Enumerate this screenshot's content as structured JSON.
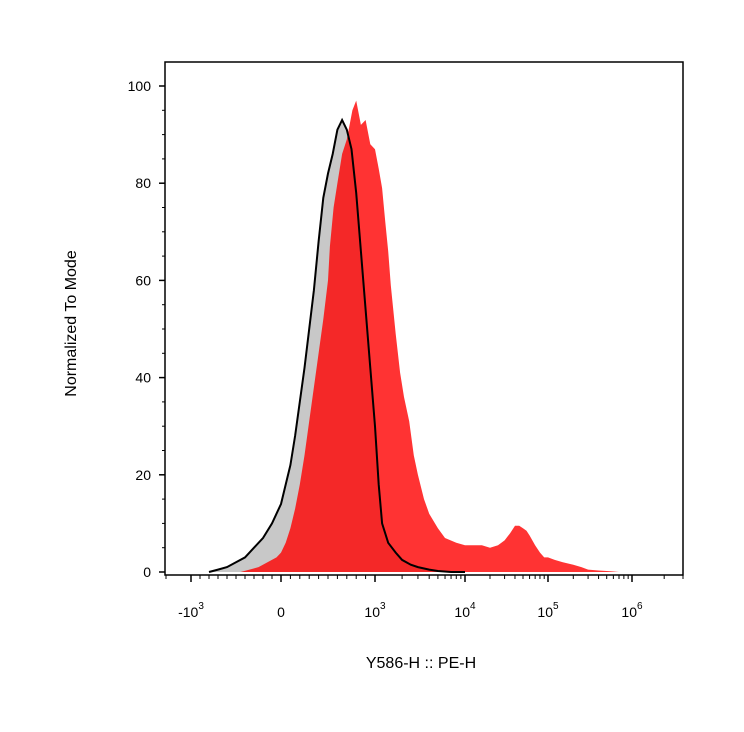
{
  "chart_data": {
    "type": "area",
    "xlabel": "Y586-H :: PE-H",
    "ylabel": "Normalized To Mode",
    "x_scale": "biexponential",
    "ylim": [
      0,
      105
    ],
    "x_tick_labels": [
      {
        "value": -1000,
        "base": "-10",
        "exp": "3"
      },
      {
        "value": 0,
        "base": "0",
        "exp": ""
      },
      {
        "value": 1000,
        "base": "10",
        "exp": "3"
      },
      {
        "value": 10000,
        "base": "10",
        "exp": "4"
      },
      {
        "value": 100000,
        "base": "10",
        "exp": "5"
      },
      {
        "value": 1000000,
        "base": "10",
        "exp": "6"
      }
    ],
    "y_ticks": [
      0,
      20,
      40,
      60,
      80,
      100
    ],
    "grid": false,
    "series": [
      {
        "color": "#ff0000",
        "fill_opacity": 0.8,
        "stroke": "#ff0000",
        "x": [
          -450,
          -350,
          -250,
          -150,
          -50,
          0,
          50,
          100,
          150,
          200,
          250,
          300,
          350,
          400,
          450,
          500,
          520,
          560,
          600,
          650,
          700,
          760,
          800,
          850,
          900,
          950,
          1000,
          1100,
          1200,
          1300,
          1400,
          1500,
          1700,
          1900,
          2100,
          2400,
          2700,
          3000,
          3500,
          4000,
          5000,
          6000,
          8000,
          10000,
          13000,
          16000,
          20000,
          25000,
          30000,
          35000,
          40000,
          45000,
          50000,
          55000,
          60000,
          70000,
          80000,
          90000,
          100000,
          120000,
          150000,
          200000,
          250000,
          300000,
          400000,
          500000,
          600000,
          700000,
          900000,
          1200000
        ],
        "y": [
          0,
          0.5,
          1,
          2,
          3,
          4,
          6,
          9,
          13,
          18,
          24,
          31,
          38,
          45,
          52,
          60,
          67,
          75,
          80,
          86,
          89,
          95,
          97,
          92,
          93,
          88,
          87,
          83,
          79,
          72,
          66,
          59,
          49,
          41,
          36,
          31,
          24,
          20,
          15,
          12,
          9,
          7,
          6,
          5.5,
          5.5,
          5.5,
          5,
          5.5,
          6.5,
          8,
          9.5,
          9.5,
          9,
          8.5,
          7.5,
          5.5,
          4,
          3,
          3,
          2.5,
          2,
          1.5,
          1,
          0.5,
          0.3,
          0.2,
          0.1,
          0,
          0,
          0
        ]
      },
      {
        "color": "#c8c8c8",
        "fill_opacity": 0.8,
        "stroke": "#000000",
        "x": [
          -800,
          -700,
          -600,
          -500,
          -400,
          -300,
          -200,
          -100,
          -50,
          0,
          50,
          100,
          150,
          200,
          250,
          300,
          350,
          400,
          450,
          500,
          550,
          600,
          650,
          700,
          750,
          800,
          850,
          900,
          950,
          1000,
          1100,
          1200,
          1400,
          1700,
          2000,
          2500,
          3000,
          4000,
          5000,
          7000,
          10000
        ],
        "y": [
          0,
          0.5,
          1,
          2,
          3,
          5,
          7,
          10,
          12,
          14,
          18,
          22,
          28,
          35,
          42,
          50,
          58,
          68,
          77,
          82,
          86,
          91,
          93,
          91,
          87,
          78,
          66,
          54,
          42,
          30,
          18,
          10,
          6,
          4,
          2.5,
          1.5,
          1,
          0.5,
          0.2,
          0,
          0
        ]
      }
    ]
  }
}
